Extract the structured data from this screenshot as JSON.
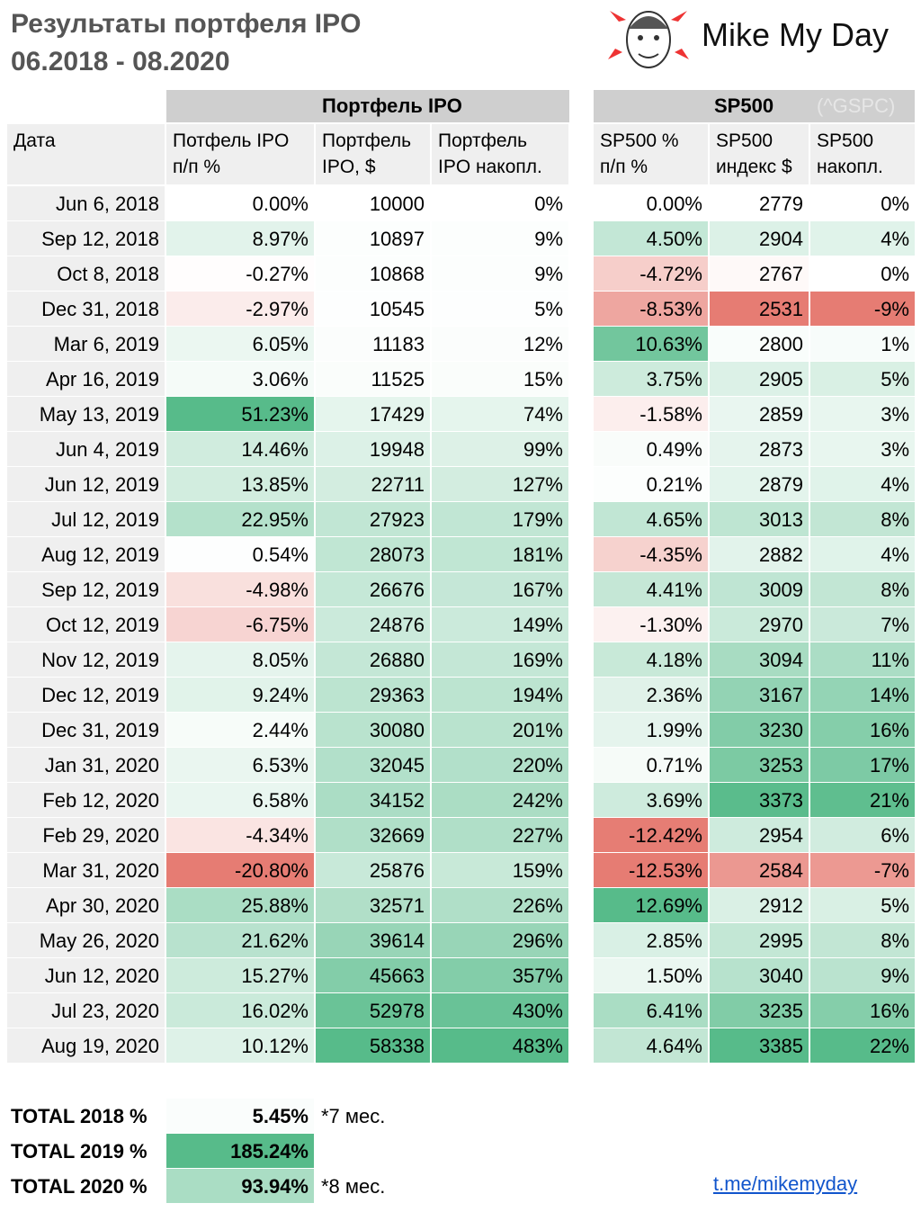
{
  "header": {
    "title_lines": [
      "Результаты портфеля IPO",
      "06.2018 - 08.2020"
    ],
    "brand": "Mike My Day"
  },
  "table": {
    "group_headers": [
      "Портфель IPO",
      "SP500",
      "(^GSPC)"
    ],
    "columns": [
      [
        "Дата"
      ],
      [
        "Потфель IPO",
        "п/п %"
      ],
      [
        "Портфель",
        "IPO, $"
      ],
      [
        "Портфель",
        "IPO накопл."
      ],
      [
        "SP500 %",
        "п/п %"
      ],
      [
        "SP500",
        "индекс $"
      ],
      [
        "SP500",
        "накопл."
      ]
    ],
    "rows": [
      [
        "Jun 6, 2018",
        "0.00%",
        "10000",
        "0%",
        "0.00%",
        "2779",
        "0%"
      ],
      [
        "Sep 12, 2018",
        "8.97%",
        "10897",
        "9%",
        "4.50%",
        "2904",
        "4%"
      ],
      [
        "Oct 8, 2018",
        "-0.27%",
        "10868",
        "9%",
        "-4.72%",
        "2767",
        "0%"
      ],
      [
        "Dec 31, 2018",
        "-2.97%",
        "10545",
        "5%",
        "-8.53%",
        "2531",
        "-9%"
      ],
      [
        "Mar 6, 2019",
        "6.05%",
        "11183",
        "12%",
        "10.63%",
        "2800",
        "1%"
      ],
      [
        "Apr 16, 2019",
        "3.06%",
        "11525",
        "15%",
        "3.75%",
        "2905",
        "5%"
      ],
      [
        "May 13, 2019",
        "51.23%",
        "17429",
        "74%",
        "-1.58%",
        "2859",
        "3%"
      ],
      [
        "Jun 4, 2019",
        "14.46%",
        "19948",
        "99%",
        "0.49%",
        "2873",
        "3%"
      ],
      [
        "Jun 12, 2019",
        "13.85%",
        "22711",
        "127%",
        "0.21%",
        "2879",
        "4%"
      ],
      [
        "Jul 12, 2019",
        "22.95%",
        "27923",
        "179%",
        "4.65%",
        "3013",
        "8%"
      ],
      [
        "Aug 12, 2019",
        "0.54%",
        "28073",
        "181%",
        "-4.35%",
        "2882",
        "4%"
      ],
      [
        "Sep 12, 2019",
        "-4.98%",
        "26676",
        "167%",
        "4.41%",
        "3009",
        "8%"
      ],
      [
        "Oct 12, 2019",
        "-6.75%",
        "24876",
        "149%",
        "-1.30%",
        "2970",
        "7%"
      ],
      [
        "Nov 12, 2019",
        "8.05%",
        "26880",
        "169%",
        "4.18%",
        "3094",
        "11%"
      ],
      [
        "Dec 12, 2019",
        "9.24%",
        "29363",
        "194%",
        "2.36%",
        "3167",
        "14%"
      ],
      [
        "Dec 31, 2019",
        "2.44%",
        "30080",
        "201%",
        "1.99%",
        "3230",
        "16%"
      ],
      [
        "Jan 31, 2020",
        "6.53%",
        "32045",
        "220%",
        "0.71%",
        "3253",
        "17%"
      ],
      [
        "Feb 12, 2020",
        "6.58%",
        "34152",
        "242%",
        "3.69%",
        "3373",
        "21%"
      ],
      [
        "Feb 29, 2020",
        "-4.34%",
        "32669",
        "227%",
        "-12.42%",
        "2954",
        "6%"
      ],
      [
        "Mar 31, 2020",
        "-20.80%",
        "25876",
        "159%",
        "-12.53%",
        "2584",
        "-7%"
      ],
      [
        "Apr 30, 2020",
        "25.88%",
        "32571",
        "226%",
        "12.69%",
        "2912",
        "5%"
      ],
      [
        "May 26, 2020",
        "21.62%",
        "39614",
        "296%",
        "2.85%",
        "2995",
        "8%"
      ],
      [
        "Jun 12, 2020",
        "15.27%",
        "45663",
        "357%",
        "1.50%",
        "3040",
        "9%"
      ],
      [
        "Jul 23, 2020",
        "16.02%",
        "52978",
        "430%",
        "6.41%",
        "3235",
        "16%"
      ],
      [
        "Aug 19, 2020",
        "10.12%",
        "58338",
        "483%",
        "4.64%",
        "3385",
        "22%"
      ]
    ]
  },
  "totals": [
    {
      "label": "TOTAL 2018 %",
      "value": "5.45%",
      "note": "*7 мес."
    },
    {
      "label": "TOTAL 2019 %",
      "value": "185.24%"
    },
    {
      "label": "TOTAL 2020 %",
      "value": "93.94%",
      "note": "*8 мес."
    }
  ],
  "link": "t.me/mikemyday"
}
